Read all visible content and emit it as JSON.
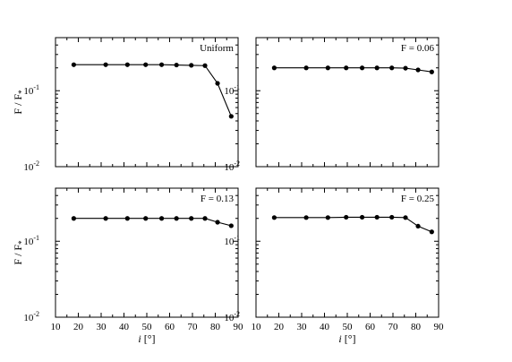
{
  "chart_data": [
    {
      "type": "line",
      "panel_label": "Uniform",
      "ylabel": "F / F*",
      "xlabel": "",
      "xlim": [
        10,
        90
      ],
      "ylim": [
        0.01,
        0.5
      ],
      "yscale": "log",
      "grid": false,
      "series": [
        {
          "x": [
            18,
            32,
            41.5,
            49.5,
            56.5,
            63,
            69.5,
            75.5,
            81,
            87
          ],
          "y": [
            0.22,
            0.22,
            0.22,
            0.22,
            0.22,
            0.218,
            0.216,
            0.214,
            0.125,
            0.046
          ]
        }
      ]
    },
    {
      "type": "line",
      "panel_label": "F = 0.06",
      "ylabel": "",
      "xlabel": "",
      "xlim": [
        10,
        90
      ],
      "ylim": [
        0.01,
        0.5
      ],
      "yscale": "log",
      "grid": false,
      "series": [
        {
          "x": [
            18,
            32,
            41.5,
            49.5,
            56.5,
            63,
            69.5,
            75.5,
            81,
            87
          ],
          "y": [
            0.2,
            0.2,
            0.2,
            0.2,
            0.2,
            0.2,
            0.2,
            0.198,
            0.188,
            0.177
          ]
        }
      ]
    },
    {
      "type": "line",
      "panel_label": "F = 0.13",
      "ylabel": "F / F*",
      "xlabel": "i [°]",
      "xlim": [
        10,
        90
      ],
      "ylim": [
        0.01,
        0.5
      ],
      "yscale": "log",
      "grid": false,
      "series": [
        {
          "x": [
            18,
            32,
            41.5,
            49.5,
            56.5,
            63,
            69.5,
            75.5,
            81,
            87
          ],
          "y": [
            0.2,
            0.2,
            0.2,
            0.2,
            0.2,
            0.2,
            0.2,
            0.2,
            0.178,
            0.16
          ]
        }
      ]
    },
    {
      "type": "line",
      "panel_label": "F = 0.25",
      "ylabel": "",
      "xlabel": "i [°]",
      "xlim": [
        10,
        90
      ],
      "ylim": [
        0.01,
        0.5
      ],
      "yscale": "log",
      "grid": false,
      "series": [
        {
          "x": [
            18,
            32,
            41.5,
            49.5,
            56.5,
            63,
            69.5,
            75.5,
            81,
            87
          ],
          "y": [
            0.205,
            0.205,
            0.205,
            0.207,
            0.207,
            0.207,
            0.207,
            0.205,
            0.158,
            0.133
          ]
        }
      ]
    }
  ],
  "xticks": [
    10,
    20,
    30,
    40,
    50,
    60,
    70,
    80,
    90
  ],
  "yticks": [
    {
      "value": 0.1,
      "base": "10",
      "exp": "-1"
    },
    {
      "value": 0.01,
      "base": "10",
      "exp": "-2"
    }
  ]
}
